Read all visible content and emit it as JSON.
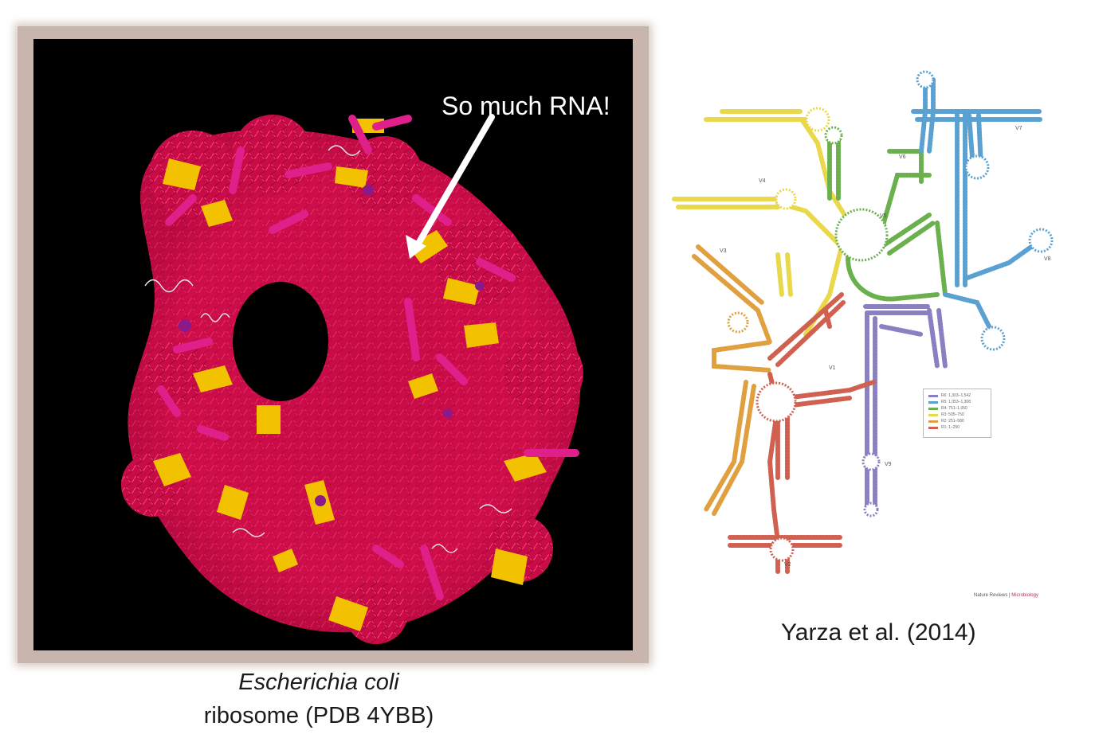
{
  "left_panel": {
    "annotation": "So much RNA!",
    "caption_species": "Escherichia coli",
    "caption_rest": "ribosome (PDB 4YBB)",
    "colors": {
      "rna": "#d0104c",
      "helix": "#e0208a",
      "sheet": "#f2c200",
      "coil": "#e8e8e8",
      "bg": "#000000"
    }
  },
  "right_panel": {
    "citation": "Yarza et al. (2014)",
    "journal": "Nature Reviews",
    "journal_section": "Microbiology",
    "legend": [
      {
        "label": "R6: 1,303–1,542",
        "color": "#8a7fc0"
      },
      {
        "label": "R5: 1,053–1,308",
        "color": "#5aa0d0"
      },
      {
        "label": "R4: 751–1,050",
        "color": "#6ab04c"
      },
      {
        "label": "R3: 505–750",
        "color": "#e8d84a"
      },
      {
        "label": "R2: 251–580",
        "color": "#e0a040"
      },
      {
        "label": "R1: 1–250",
        "color": "#d06050"
      }
    ],
    "region_labels": [
      "V1",
      "V2",
      "V3",
      "V4",
      "V5",
      "V6",
      "V7",
      "V8",
      "V9"
    ]
  }
}
